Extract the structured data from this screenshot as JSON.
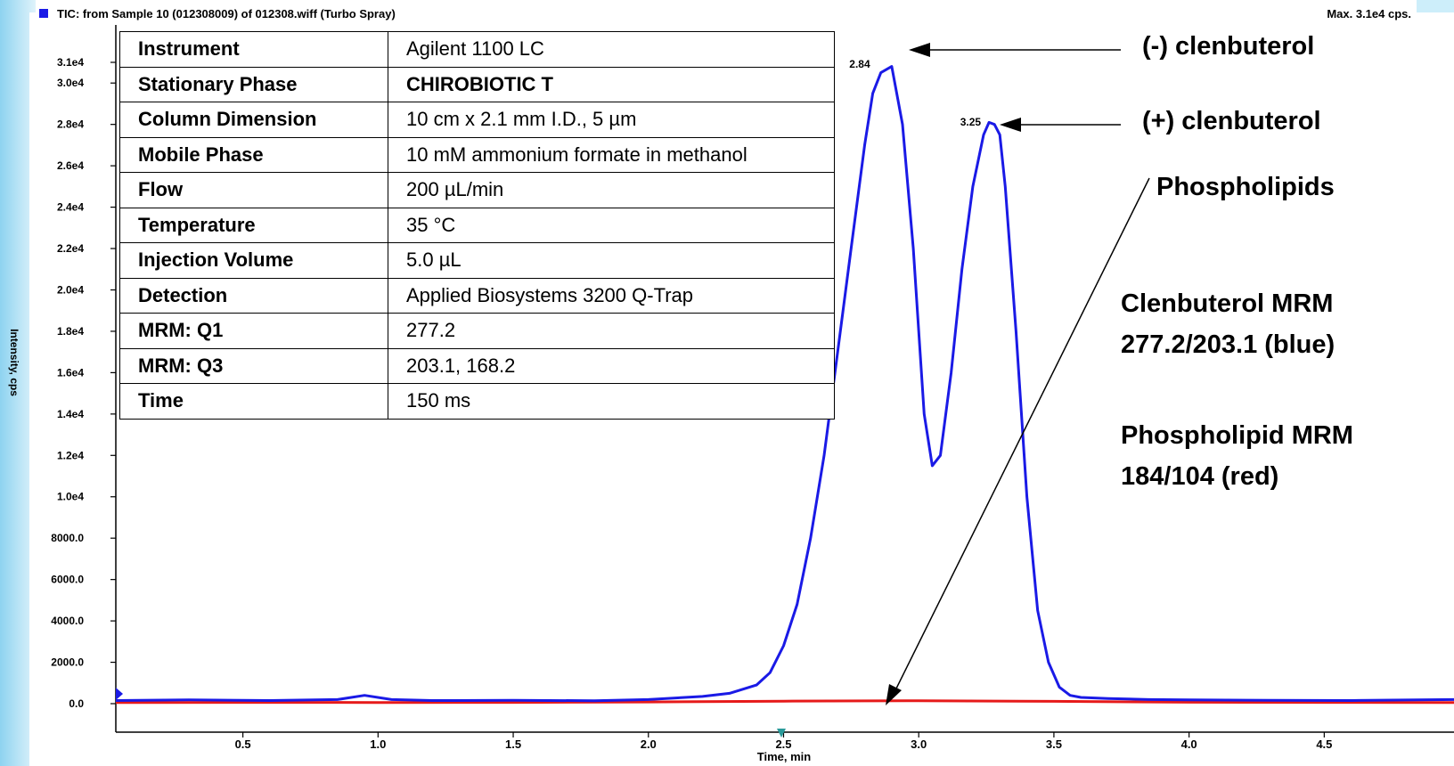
{
  "header": {
    "title": "TIC: from Sample 10 (012308009) of 012308.wiff (Turbo Spray)",
    "max": "Max. 3.1e4 cps."
  },
  "colors": {
    "tic_line": "#1a1ae6",
    "phospholipid_line": "#e61a1a",
    "background_tint": "#8ed3f0",
    "marker": "#1a1ae6"
  },
  "params_table": [
    {
      "label": "Instrument",
      "value": "Agilent 1100 LC"
    },
    {
      "label": "Stationary Phase",
      "value": "CHIROBIOTIC T"
    },
    {
      "label": "Column Dimension",
      "value": "10 cm x 2.1 mm I.D., 5 µm"
    },
    {
      "label": "Mobile Phase",
      "value": "10 mM ammonium formate in methanol"
    },
    {
      "label": "Flow",
      "value": "200 µL/min"
    },
    {
      "label": "Temperature",
      "value": "35 °C"
    },
    {
      "label": "Injection Volume",
      "value": "5.0 µL"
    },
    {
      "label": "Detection",
      "value": "Applied Biosystems 3200 Q-Trap"
    },
    {
      "label": "MRM: Q1",
      "value": "277.2"
    },
    {
      "label": "MRM: Q3",
      "value": "203.1, 168.2"
    },
    {
      "label": "Time",
      "value": "150 ms"
    }
  ],
  "annotations": {
    "minus": "(-) clenbuterol",
    "plus": "(+) clenbuterol",
    "phospho": "Phospholipids",
    "clen_mrm_1": "Clenbuterol MRM",
    "clen_mrm_2": "277.2/203.1 (blue)",
    "phos_mrm_1": "Phospholipid MRM",
    "phos_mrm_2": "184/104 (red)"
  },
  "chart_data": {
    "type": "line",
    "title": "TIC: from Sample 10 (012308009) of 012308.wiff (Turbo Spray)",
    "xlabel": "Time, min",
    "ylabel": "Intensity, cps",
    "xlim": [
      0.03,
      4.98
    ],
    "ylim": [
      0,
      31000
    ],
    "x_ticks": [
      0.5,
      1.0,
      1.5,
      2.0,
      2.5,
      3.0,
      3.5,
      4.0,
      4.5
    ],
    "x_tick_labels": [
      "0.5",
      "1.0",
      "1.5",
      "2.0",
      "2.5",
      "3.0",
      "3.5",
      "4.0",
      "4.5"
    ],
    "y_ticks": [
      0,
      2000,
      4000,
      6000,
      8000,
      10000,
      12000,
      14000,
      16000,
      18000,
      20000,
      22000,
      24000,
      26000,
      28000,
      30000,
      31000
    ],
    "y_tick_labels": [
      "0.0",
      "2000.0",
      "4000.0",
      "6000.0",
      "8000.0",
      "1.0e4",
      "1.2e4",
      "1.4e4",
      "1.6e4",
      "1.8e4",
      "2.0e4",
      "2.2e4",
      "2.4e4",
      "2.6e4",
      "2.8e4",
      "3.0e4",
      "3.1e4"
    ],
    "peak_labels": [
      {
        "x": 2.84,
        "y": 31000,
        "label": "2.84"
      },
      {
        "x": 3.25,
        "y": 28200,
        "label": "3.25"
      }
    ],
    "series": [
      {
        "name": "Clenbuterol MRM 277.2/203.1 (blue)",
        "color": "#1a1ae6",
        "x": [
          0.03,
          0.3,
          0.6,
          0.85,
          0.95,
          1.05,
          1.2,
          1.5,
          1.8,
          2.0,
          2.2,
          2.3,
          2.4,
          2.45,
          2.5,
          2.55,
          2.6,
          2.65,
          2.7,
          2.75,
          2.8,
          2.83,
          2.86,
          2.9,
          2.94,
          2.98,
          3.02,
          3.05,
          3.08,
          3.12,
          3.16,
          3.2,
          3.24,
          3.26,
          3.28,
          3.3,
          3.32,
          3.36,
          3.4,
          3.44,
          3.48,
          3.52,
          3.56,
          3.6,
          3.7,
          3.85,
          4.0,
          4.3,
          4.6,
          4.98
        ],
        "y": [
          150,
          180,
          150,
          200,
          400,
          200,
          150,
          160,
          140,
          200,
          350,
          500,
          900,
          1500,
          2800,
          4800,
          8000,
          12000,
          17000,
          22000,
          27000,
          29500,
          30500,
          30800,
          28000,
          22000,
          14000,
          11500,
          12000,
          16000,
          21000,
          25000,
          27500,
          28100,
          28000,
          27500,
          25000,
          18000,
          10000,
          4500,
          2000,
          800,
          400,
          300,
          250,
          200,
          180,
          160,
          150,
          200
        ]
      },
      {
        "name": "Phospholipid MRM 184/104 (red)",
        "color": "#e61a1a",
        "x": [
          0.03,
          0.5,
          1.0,
          1.5,
          2.0,
          2.5,
          3.0,
          3.5,
          4.0,
          4.5,
          4.98
        ],
        "y": [
          50,
          60,
          55,
          60,
          80,
          120,
          140,
          110,
          70,
          60,
          50
        ]
      }
    ]
  }
}
